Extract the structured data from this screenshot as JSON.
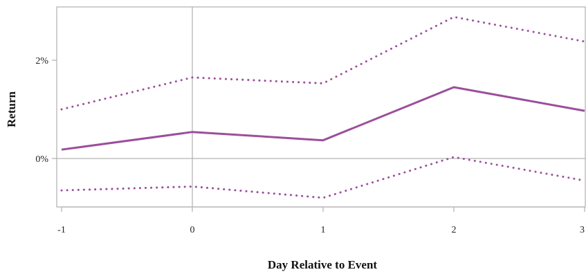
{
  "chart_data": {
    "type": "line",
    "xlabel": "Day Relative to Event",
    "ylabel": "Return",
    "x": [
      -1,
      0,
      1,
      2,
      3
    ],
    "xlim": [
      -1,
      3
    ],
    "ylim": [
      -1.0,
      3.0
    ],
    "x_ticks": [
      -1,
      0,
      1,
      2,
      3
    ],
    "x_tick_labels": [
      "-1",
      "0",
      "1",
      "2",
      "3"
    ],
    "y_ticks": [
      0,
      2
    ],
    "y_tick_labels": [
      "0%",
      "2%"
    ],
    "reference_lines": {
      "y": 0,
      "x": 0
    },
    "series": [
      {
        "style": "solid",
        "values": [
          0.18,
          0.54,
          0.37,
          1.45,
          0.97
        ]
      },
      {
        "style": "dotted",
        "values": [
          1.0,
          1.65,
          1.53,
          2.88,
          2.38
        ]
      },
      {
        "style": "dotted",
        "values": [
          -0.65,
          -0.57,
          -0.8,
          0.03,
          -0.45
        ]
      }
    ],
    "colors": {
      "series": "#9b4f9b",
      "reference": "#b5b5b5",
      "frame": "#b5b5b5"
    }
  }
}
